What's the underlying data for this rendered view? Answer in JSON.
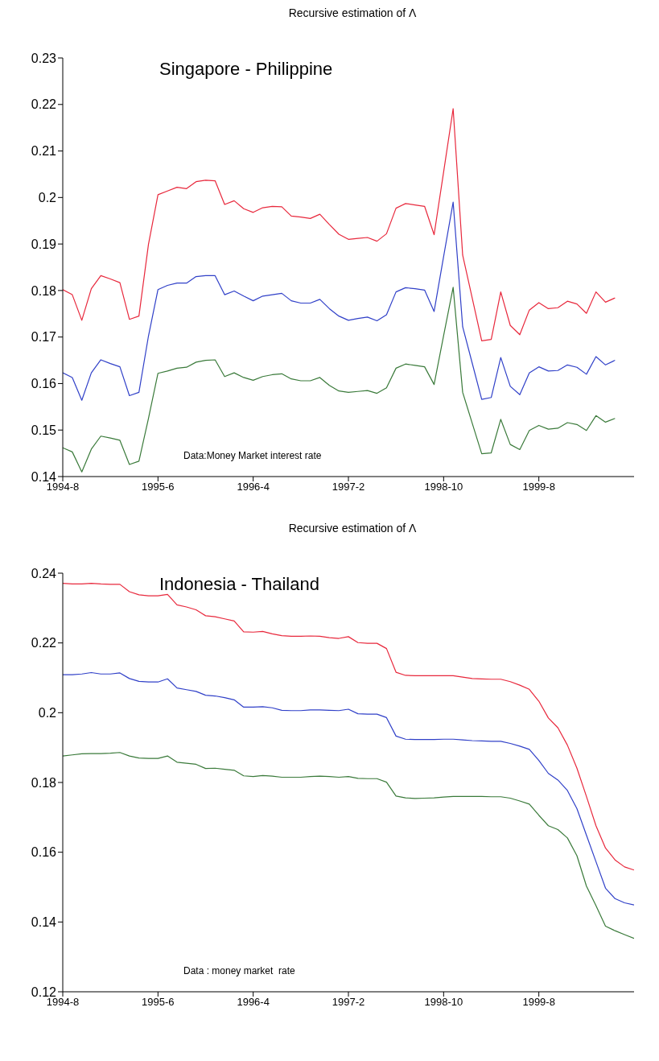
{
  "chart_data": [
    {
      "type": "line",
      "title": "Recursive estimation of Λ",
      "annotations": [
        "Singapore - Philippine",
        "Data:Money Market interest rate"
      ],
      "categories": [
        "1994-8",
        null,
        null,
        null,
        null,
        null,
        null,
        null,
        null,
        null,
        "1995-6",
        null,
        null,
        null,
        null,
        null,
        null,
        null,
        null,
        null,
        "1996-4",
        null,
        null,
        null,
        null,
        null,
        null,
        null,
        null,
        null,
        "1997-2",
        null,
        null,
        null,
        null,
        null,
        null,
        null,
        null,
        null,
        "1998-10",
        null,
        null,
        null,
        null,
        null,
        null,
        null,
        null,
        null,
        "1999-8",
        null,
        null,
        null,
        null,
        null,
        null,
        null,
        null,
        null,
        null
      ],
      "series": [
        {
          "color": "#e8283c",
          "values": [
            0.1802,
            0.1791,
            0.1736,
            0.1804,
            0.1832,
            0.1825,
            0.1817,
            0.1738,
            0.1745,
            0.1899,
            0.2006,
            0.2014,
            0.2022,
            0.2019,
            0.2034,
            0.2037,
            0.2036,
            0.1985,
            0.1993,
            0.1976,
            0.1968,
            0.1978,
            0.1981,
            0.198,
            0.196,
            0.1958,
            0.1955,
            0.1964,
            0.1942,
            0.1921,
            0.191,
            0.1912,
            0.1914,
            0.1906,
            0.1922,
            0.1977,
            0.1987,
            0.1984,
            0.1981,
            0.192,
            0.2055,
            0.2191,
            0.1876,
            0.1784,
            0.1692,
            0.1695,
            0.1797,
            0.1725,
            0.1705,
            0.1758,
            0.1774,
            0.1761,
            0.1763,
            0.1777,
            0.1771,
            0.1751,
            0.1797,
            0.1775,
            0.1784,
            null,
            null
          ]
        },
        {
          "color": "#3040c8",
          "values": [
            0.1623,
            0.1613,
            0.1564,
            0.1623,
            0.1651,
            0.1643,
            0.1636,
            0.1574,
            0.1581,
            0.1702,
            0.1802,
            0.1811,
            0.1816,
            0.1816,
            0.183,
            0.1832,
            0.1832,
            0.1791,
            0.1799,
            0.1788,
            0.1778,
            0.1788,
            0.1791,
            0.1794,
            0.1778,
            0.1773,
            0.1773,
            0.1781,
            0.1761,
            0.1745,
            0.1736,
            0.174,
            0.1743,
            0.1735,
            0.1748,
            0.1797,
            0.1806,
            0.1804,
            0.1801,
            0.1755,
            0.1873,
            0.199,
            0.1722,
            0.1644,
            0.1566,
            0.157,
            0.1656,
            0.1594,
            0.1576,
            0.1623,
            0.1636,
            0.1627,
            0.1628,
            0.164,
            0.1635,
            0.162,
            0.1658,
            0.164,
            0.165,
            null,
            null
          ]
        },
        {
          "color": "#3a7a3a",
          "values": [
            0.1462,
            0.1453,
            0.141,
            0.1459,
            0.1487,
            0.1483,
            0.1478,
            0.1426,
            0.1433,
            0.1525,
            0.1622,
            0.1627,
            0.1633,
            0.1635,
            0.1646,
            0.165,
            0.1651,
            0.1615,
            0.1623,
            0.1613,
            0.1607,
            0.1615,
            0.1619,
            0.1621,
            0.161,
            0.1606,
            0.1606,
            0.1613,
            0.1596,
            0.1584,
            0.1581,
            0.1583,
            0.1585,
            0.1579,
            0.1591,
            0.1633,
            0.1642,
            0.1639,
            0.1636,
            0.1598,
            0.1703,
            0.1807,
            0.1581,
            0.1515,
            0.1449,
            0.1451,
            0.1523,
            0.1469,
            0.1458,
            0.1499,
            0.151,
            0.1502,
            0.1504,
            0.1516,
            0.1512,
            0.1499,
            0.1531,
            0.1517,
            0.1525,
            null,
            null
          ]
        }
      ],
      "ylim": [
        0.14,
        0.23
      ],
      "yticks": [
        0.14,
        0.15,
        0.16,
        0.17,
        0.18,
        0.19,
        0.2,
        0.21,
        0.22,
        0.23
      ],
      "grid": false,
      "legend": false
    },
    {
      "type": "line",
      "title": "Recursive estimation of Λ",
      "annotations": [
        "Indonesia - Thailand",
        "Data : money market  rate"
      ],
      "categories": [
        "1994-8",
        null,
        null,
        null,
        null,
        null,
        null,
        null,
        null,
        null,
        "1995-6",
        null,
        null,
        null,
        null,
        null,
        null,
        null,
        null,
        null,
        "1996-4",
        null,
        null,
        null,
        null,
        null,
        null,
        null,
        null,
        null,
        "1997-2",
        null,
        null,
        null,
        null,
        null,
        null,
        null,
        null,
        null,
        "1998-10",
        null,
        null,
        null,
        null,
        null,
        null,
        null,
        null,
        null,
        "1999-8",
        null,
        null,
        null,
        null,
        null,
        null,
        null,
        null,
        null,
        null
      ],
      "series": [
        {
          "color": "#e8283c",
          "values": [
            0.2371,
            0.2369,
            0.2369,
            0.2371,
            0.2369,
            0.2368,
            0.2368,
            0.2347,
            0.2338,
            0.2335,
            0.2335,
            0.2339,
            0.2309,
            0.2303,
            0.2295,
            0.2278,
            0.2275,
            0.2269,
            0.2263,
            0.2232,
            0.2231,
            0.2233,
            0.2226,
            0.2221,
            0.2219,
            0.2219,
            0.222,
            0.2219,
            0.2215,
            0.2213,
            0.2218,
            0.2201,
            0.2199,
            0.2199,
            0.2184,
            0.2116,
            0.2107,
            0.2106,
            0.2106,
            0.2106,
            0.2106,
            0.2106,
            0.2102,
            0.2098,
            0.2097,
            0.2096,
            0.2096,
            0.2089,
            0.2079,
            0.2067,
            0.2033,
            0.1985,
            0.1957,
            0.1907,
            0.1841,
            0.176,
            0.1676,
            0.1612,
            0.1578,
            0.1558,
            0.1549
          ]
        },
        {
          "color": "#3040c8",
          "values": [
            0.2109,
            0.2109,
            0.2111,
            0.2115,
            0.2111,
            0.2111,
            0.2114,
            0.2098,
            0.209,
            0.2088,
            0.2088,
            0.2097,
            0.2071,
            0.2066,
            0.2061,
            0.205,
            0.2048,
            0.2043,
            0.2037,
            0.2016,
            0.2016,
            0.2017,
            0.2014,
            0.2007,
            0.2006,
            0.2006,
            0.2008,
            0.2008,
            0.2007,
            0.2006,
            0.201,
            0.1997,
            0.1996,
            0.1996,
            0.1986,
            0.1933,
            0.1924,
            0.1923,
            0.1923,
            0.1923,
            0.1924,
            0.1924,
            0.1922,
            0.192,
            0.1919,
            0.1918,
            0.1918,
            0.1912,
            0.1904,
            0.1895,
            0.1863,
            0.1826,
            0.1807,
            0.1777,
            0.1725,
            0.1649,
            0.1573,
            0.1497,
            0.1467,
            0.1455,
            0.1449
          ]
        },
        {
          "color": "#3a7a3a",
          "values": [
            0.1876,
            0.1879,
            0.1882,
            0.1883,
            0.1883,
            0.1884,
            0.1886,
            0.1876,
            0.187,
            0.1869,
            0.1869,
            0.1876,
            0.1858,
            0.1855,
            0.1852,
            0.184,
            0.1841,
            0.1838,
            0.1835,
            0.1819,
            0.1817,
            0.182,
            0.1818,
            0.1815,
            0.1815,
            0.1815,
            0.1817,
            0.1818,
            0.1817,
            0.1815,
            0.1817,
            0.1812,
            0.1811,
            0.1811,
            0.1801,
            0.1761,
            0.1756,
            0.1754,
            0.1755,
            0.1756,
            0.1758,
            0.176,
            0.176,
            0.176,
            0.176,
            0.1759,
            0.1759,
            0.1755,
            0.1747,
            0.1738,
            0.1706,
            0.1676,
            0.1665,
            0.1641,
            0.159,
            0.1503,
            0.1447,
            0.1388,
            0.1375,
            0.1364,
            0.1353
          ]
        }
      ],
      "ylim": [
        0.12,
        0.24
      ],
      "yticks": [
        0.12,
        0.14,
        0.16,
        0.18,
        0.2,
        0.22,
        0.24
      ],
      "grid": false,
      "legend": false
    }
  ]
}
